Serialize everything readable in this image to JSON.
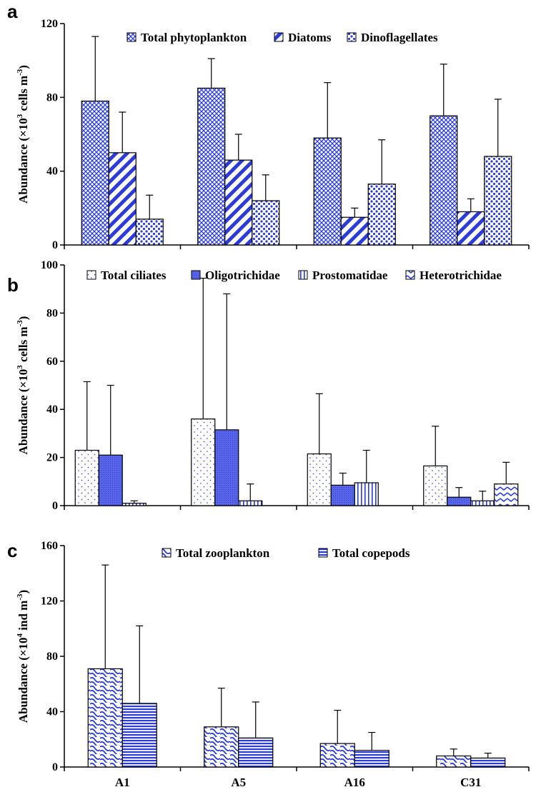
{
  "chart_data": [
    {
      "panel": "a",
      "type": "bar",
      "categories": [
        "A1",
        "A5",
        "A16",
        "C31"
      ],
      "ylabel": {
        "main": "Abundance (×10",
        "sup1": "3",
        "mid": " cells m",
        "sup2": "-3",
        "end": ")"
      },
      "ylim": [
        0,
        120
      ],
      "yticks": [
        0,
        40,
        80,
        120
      ],
      "legend_position": "top",
      "grid": false,
      "series": [
        {
          "name": "Total phytoplankton",
          "pattern": "crosshatch",
          "values": [
            78,
            85,
            58,
            70
          ],
          "errors": [
            113,
            101,
            88,
            98
          ]
        },
        {
          "name": "Diatoms",
          "pattern": "diagonal",
          "values": [
            50,
            46,
            15,
            18
          ],
          "errors": [
            72,
            60,
            20,
            25
          ]
        },
        {
          "name": "Dinoflagellates",
          "pattern": "dots",
          "values": [
            14,
            24,
            33,
            48
          ],
          "errors": [
            27,
            38,
            57,
            79
          ]
        }
      ]
    },
    {
      "panel": "b",
      "type": "bar",
      "categories": [
        "A1",
        "A5",
        "A16",
        "C31"
      ],
      "ylabel": {
        "main": "Abundance (×10",
        "sup1": "3",
        "mid": " cells m",
        "sup2": "-3",
        "end": ")"
      },
      "ylim": [
        0,
        100
      ],
      "yticks": [
        0,
        20,
        40,
        60,
        80,
        100
      ],
      "legend_position": "top",
      "grid": false,
      "series": [
        {
          "name": "Total ciliates",
          "pattern": "sparse-dots",
          "values": [
            23,
            36,
            21.5,
            16.5
          ],
          "errors": [
            51.5,
            94.5,
            46.5,
            33
          ]
        },
        {
          "name": "Oligotrichidae",
          "pattern": "fine-dots",
          "values": [
            21,
            31.5,
            8.5,
            3.5
          ],
          "errors": [
            50,
            88,
            13.5,
            7.5
          ]
        },
        {
          "name": "Prostomatidae",
          "pattern": "vertical",
          "values": [
            1,
            2,
            9.5,
            2
          ],
          "errors": [
            2,
            9,
            23,
            6
          ]
        },
        {
          "name": "Heterotrichidae",
          "pattern": "zigzag",
          "values": [
            0,
            0,
            0,
            9
          ],
          "errors": [
            0,
            0,
            0,
            18
          ]
        }
      ]
    },
    {
      "panel": "c",
      "type": "bar",
      "categories": [
        "A1",
        "A5",
        "A16",
        "C31"
      ],
      "ylabel": {
        "main": "Abundance (×10",
        "sup1": "4",
        "mid": " ind m",
        "sup2": "-3",
        "end": ")"
      },
      "ylim": [
        0,
        160
      ],
      "yticks": [
        0,
        40,
        80,
        120,
        160
      ],
      "legend_position": "top",
      "grid": false,
      "series": [
        {
          "name": "Total zooplankton",
          "pattern": "wave",
          "values": [
            71,
            29,
            17,
            8
          ],
          "errors": [
            146,
            57,
            41,
            13
          ]
        },
        {
          "name": "Total copepods",
          "pattern": "horizontal",
          "values": [
            46,
            21,
            12,
            6.5
          ],
          "errors": [
            102,
            47,
            25,
            10
          ]
        }
      ]
    }
  ],
  "colors": {
    "fill": "#2b3bd9",
    "light": "#ffffff",
    "ink": "#000000"
  }
}
